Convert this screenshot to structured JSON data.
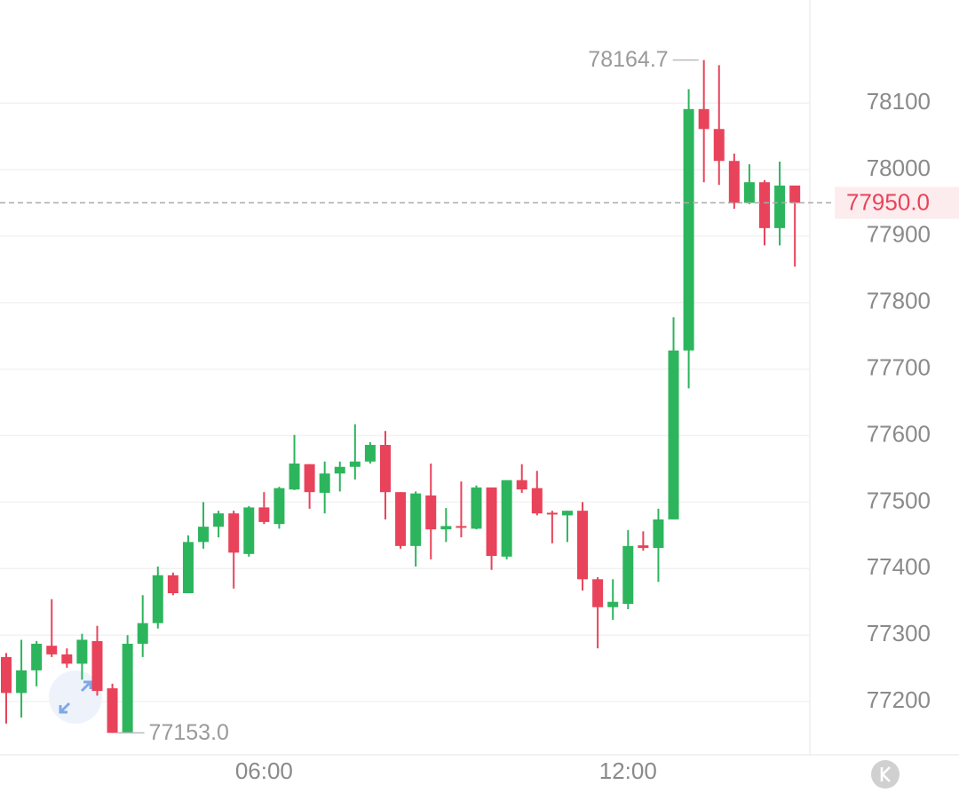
{
  "chart_data": {
    "type": "candlestick",
    "categories": [
      null,
      null,
      null,
      null,
      null,
      null,
      null,
      null,
      null,
      null,
      null,
      null,
      null,
      null,
      null,
      null,
      null,
      "06:00",
      null,
      null,
      null,
      null,
      null,
      null,
      null,
      null,
      null,
      null,
      null,
      null,
      null,
      null,
      null,
      null,
      null,
      null,
      null,
      null,
      null,
      null,
      null,
      "12:00",
      null,
      null,
      null,
      null,
      null,
      null,
      null,
      null,
      null,
      null,
      null
    ],
    "open": [
      77267,
      77213,
      77247,
      77284,
      77271,
      77257,
      77291,
      77220,
      77153,
      77287,
      77318,
      77390,
      77363,
      77440,
      77463,
      77483,
      77422,
      77492,
      77467,
      77519,
      77557,
      77514,
      77543,
      77553,
      77561,
      77586,
      77515,
      77434,
      77510,
      77459,
      77464,
      77460,
      77522,
      77418,
      77533,
      77521,
      77484,
      77480,
      77487,
      77384,
      77342,
      77347,
      77435,
      77431,
      77474,
      77728,
      78091,
      78061,
      78013,
      77950,
      77981,
      77912,
      77976
    ],
    "high": [
      77273,
      77293,
      77291,
      77354,
      77280,
      77302,
      77314,
      77227,
      77300,
      77360,
      77403,
      77394,
      77450,
      77500,
      77487,
      77487,
      77494,
      77515,
      77523,
      77601,
      77557,
      77561,
      77561,
      77617,
      77590,
      77607,
      77515,
      77516,
      77558,
      77491,
      77531,
      77525,
      77522,
      77533,
      77557,
      77547,
      77487,
      77487,
      77500,
      77387,
      77384,
      77458,
      77456,
      77490,
      77778,
      78121,
      78164.7,
      78157,
      78024,
      78008,
      77984,
      78012,
      77976
    ],
    "low": [
      77167,
      77176,
      77223,
      77267,
      77251,
      77233,
      77209,
      77153,
      77153,
      77267,
      77310,
      77360,
      77363,
      77430,
      77447,
      77370,
      77418,
      77467,
      77460,
      77518,
      77490,
      77483,
      77516,
      77534,
      77558,
      77474,
      77430,
      77403,
      77414,
      77440,
      77447,
      77459,
      77398,
      77414,
      77514,
      77480,
      77438,
      77440,
      77367,
      77280,
      77323,
      77339,
      77427,
      77380,
      77474,
      77671,
      77981,
      77977,
      77941,
      77948,
      77886,
      77886,
      77854
    ],
    "close": [
      77213,
      77247,
      77287,
      77271,
      77257,
      77293,
      77216,
      77153,
      77287,
      77318,
      77390,
      77363,
      77440,
      77463,
      77483,
      77424,
      77492,
      77470,
      77521,
      77558,
      77515,
      77543,
      77553,
      77561,
      77586,
      77515,
      77434,
      77513,
      77459,
      77464,
      77462,
      77522,
      77419,
      77533,
      77519,
      77483,
      77482,
      77487,
      77384,
      77342,
      77350,
      77434,
      77431,
      77474,
      77728,
      78091,
      78061,
      78013,
      77950,
      77981,
      77912,
      77976,
      77950
    ],
    "up_color": "#2db55d",
    "down_color": "#e8435a",
    "ylim": [
      77120,
      78255
    ],
    "yticks": [
      77200,
      77300,
      77400,
      77500,
      77600,
      77700,
      77800,
      77900,
      78000,
      78100
    ],
    "grid": true,
    "max_label": {
      "value": 78164.7,
      "label": "78164.7"
    },
    "min_label": {
      "value": 77153,
      "label": "77153.0"
    },
    "last_price": {
      "value": 77950,
      "label": "77950.0"
    }
  }
}
